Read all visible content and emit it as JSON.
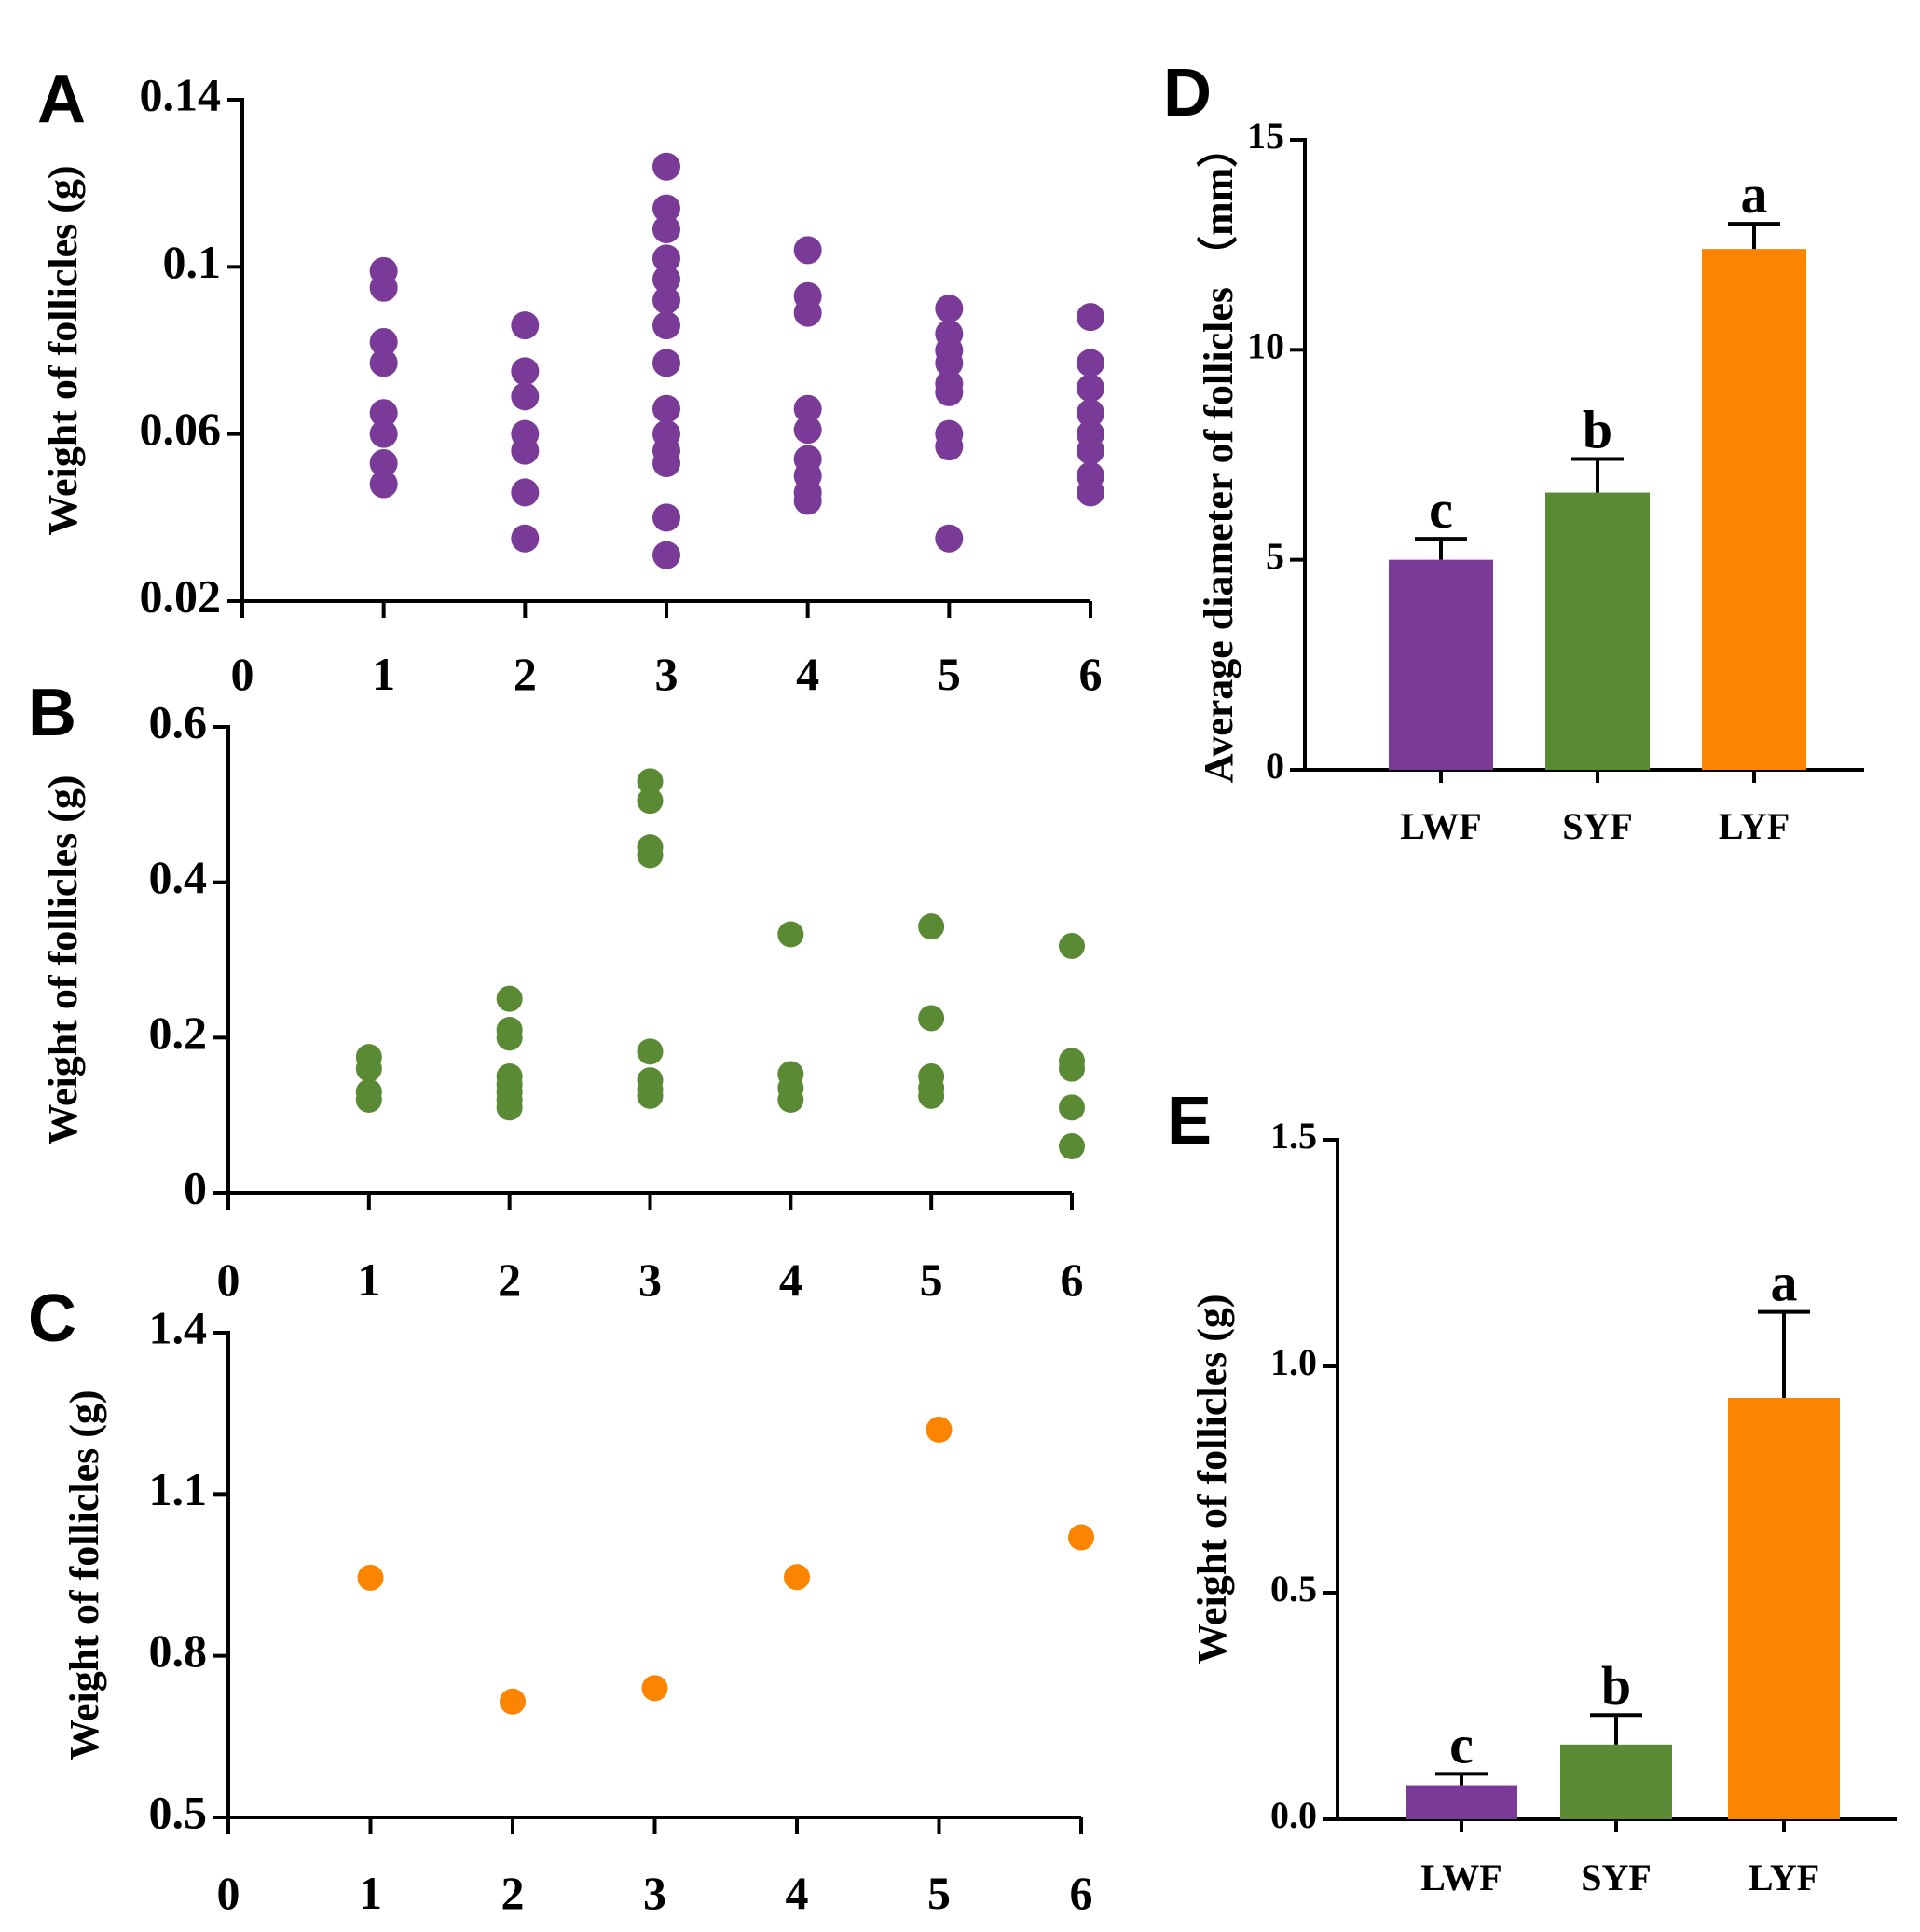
{
  "colors": {
    "purple": "#7a3b98",
    "green": "#5a8a34",
    "orange": "#fb8400",
    "axis": "#000000"
  },
  "chart_data": [
    {
      "panel": "A",
      "type": "scatter",
      "ylabel": "Weight of follicles (g)",
      "xlabel": "",
      "xlim": [
        0,
        6
      ],
      "ylim": [
        0.02,
        0.14
      ],
      "xticks": [
        "0",
        "1",
        "2",
        "3",
        "4",
        "5",
        "6"
      ],
      "yticks": [
        0.02,
        0.06,
        0.1,
        0.14
      ],
      "ytick_labels": [
        "0.02",
        "0.06",
        "0.1",
        "0.14"
      ],
      "color": "purple",
      "points": [
        {
          "x": 1,
          "y": [
            0.099,
            0.095,
            0.082,
            0.077,
            0.065,
            0.06,
            0.053,
            0.048
          ]
        },
        {
          "x": 2,
          "y": [
            0.086,
            0.075,
            0.069,
            0.06,
            0.056,
            0.046,
            0.035
          ]
        },
        {
          "x": 3,
          "y": [
            0.124,
            0.114,
            0.109,
            0.102,
            0.097,
            0.092,
            0.086,
            0.077,
            0.066,
            0.06,
            0.056,
            0.053,
            0.04,
            0.031
          ]
        },
        {
          "x": 4,
          "y": [
            0.104,
            0.093,
            0.089,
            0.066,
            0.061,
            0.054,
            0.05,
            0.046,
            0.044
          ]
        },
        {
          "x": 5,
          "y": [
            0.09,
            0.084,
            0.08,
            0.077,
            0.072,
            0.07,
            0.06,
            0.057,
            0.035
          ]
        },
        {
          "x": 6,
          "y": [
            0.088,
            0.077,
            0.071,
            0.065,
            0.06,
            0.056,
            0.05,
            0.046
          ]
        }
      ]
    },
    {
      "panel": "B",
      "type": "scatter",
      "ylabel": "Weight of follicles (g)",
      "xlabel": "",
      "xlim": [
        0,
        6
      ],
      "ylim": [
        0,
        0.6
      ],
      "xticks": [
        "0",
        "1",
        "2",
        "3",
        "4",
        "5",
        "6"
      ],
      "yticks": [
        0,
        0.2,
        0.4,
        0.6
      ],
      "ytick_labels": [
        "0",
        "0.2",
        "0.4",
        "0.6"
      ],
      "color": "green",
      "points": [
        {
          "x": 1,
          "y": [
            0.175,
            0.16,
            0.13,
            0.12
          ]
        },
        {
          "x": 2,
          "y": [
            0.25,
            0.21,
            0.2,
            0.15,
            0.14,
            0.13,
            0.12,
            0.11
          ]
        },
        {
          "x": 3,
          "y": [
            0.53,
            0.505,
            0.445,
            0.435,
            0.182,
            0.145,
            0.133,
            0.125
          ]
        },
        {
          "x": 4,
          "y": [
            0.333,
            0.153,
            0.135,
            0.12
          ]
        },
        {
          "x": 5,
          "y": [
            0.343,
            0.225,
            0.15,
            0.135,
            0.125
          ]
        },
        {
          "x": 6,
          "y": [
            0.318,
            0.17,
            0.16,
            0.11,
            0.06
          ]
        }
      ]
    },
    {
      "panel": "C",
      "type": "scatter",
      "ylabel": "Weight of follicles (g)",
      "xlabel": "",
      "xlim": [
        0,
        6
      ],
      "ylim": [
        0.5,
        1.4
      ],
      "xticks": [
        "0",
        "1",
        "2",
        "3",
        "4",
        "5",
        "6"
      ],
      "yticks": [
        0.5,
        0.8,
        1.1,
        1.4
      ],
      "ytick_labels": [
        "0.5",
        "0.8",
        "1.1",
        "1.4"
      ],
      "color": "orange",
      "points": [
        {
          "x": 1,
          "y": [
            0.945
          ]
        },
        {
          "x": 2,
          "y": [
            0.715
          ]
        },
        {
          "x": 3,
          "y": [
            0.74
          ]
        },
        {
          "x": 4,
          "y": [
            0.946
          ]
        },
        {
          "x": 5,
          "y": [
            1.22
          ]
        },
        {
          "x": 6,
          "y": [
            1.02
          ]
        }
      ]
    },
    {
      "panel": "D",
      "type": "bar",
      "ylabel": "Average diameter of follicles （mm）",
      "xlabel": "",
      "ylim": [
        0,
        15
      ],
      "yticks": [
        0,
        5,
        10,
        15
      ],
      "ytick_labels": [
        "0",
        "5",
        "10",
        "15"
      ],
      "categories": [
        "LWF",
        "SYF",
        "LYF"
      ],
      "values": [
        5.0,
        6.6,
        12.4
      ],
      "errors": [
        0.5,
        0.8,
        0.6
      ],
      "significance": [
        "c",
        "b",
        "a"
      ],
      "colors": [
        "purple",
        "green",
        "orange"
      ]
    },
    {
      "panel": "E",
      "type": "bar",
      "ylabel": "Weight of follicles (g)",
      "xlabel": "",
      "ylim": [
        0,
        1.5
      ],
      "yticks": [
        0,
        0.5,
        1.0,
        1.5
      ],
      "ytick_labels": [
        "0.0",
        "0.5",
        "1.0",
        "1.5"
      ],
      "categories": [
        "LWF",
        "SYF",
        "LYF"
      ],
      "values": [
        0.075,
        0.165,
        0.93
      ],
      "errors": [
        0.025,
        0.065,
        0.19
      ],
      "significance": [
        "c",
        "b",
        "a"
      ],
      "colors": [
        "purple",
        "green",
        "orange"
      ]
    }
  ]
}
